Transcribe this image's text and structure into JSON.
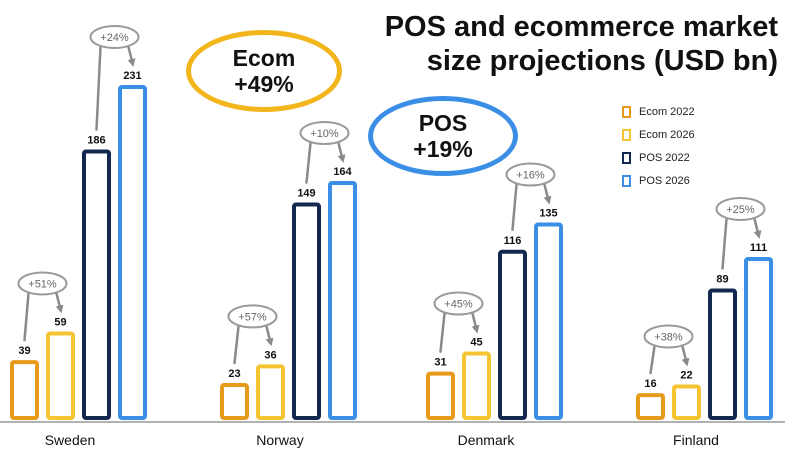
{
  "title_line1": "POS and ecommerce market",
  "title_line2": "size projections (USD bn)",
  "callouts": {
    "ecom": {
      "label": "Ecom",
      "change": "+49%",
      "color": "#f2b61c"
    },
    "pos": {
      "label": "POS",
      "change": "+19%",
      "color": "#3a8ee6"
    }
  },
  "legend": [
    {
      "label": "Ecom 2022",
      "color": "#e89a1c"
    },
    {
      "label": "Ecom 2026",
      "color": "#f5c531"
    },
    {
      "label": "POS 2022",
      "color": "#13284f"
    },
    {
      "label": "POS 2026",
      "color": "#3a8ee6"
    }
  ],
  "chart_data": {
    "type": "bar",
    "title": "POS and ecommerce market size projections (USD bn)",
    "xlabel": "",
    "ylabel": "",
    "ylim": [
      0,
      240
    ],
    "categories": [
      "Sweden",
      "Norway",
      "Denmark",
      "Finland"
    ],
    "series": [
      {
        "name": "Ecom 2022",
        "color": "#e89a1c",
        "values": [
          39,
          23,
          31,
          16
        ]
      },
      {
        "name": "Ecom 2026",
        "color": "#f5c531",
        "values": [
          59,
          36,
          45,
          22
        ]
      },
      {
        "name": "POS 2022",
        "color": "#13284f",
        "values": [
          186,
          149,
          116,
          89
        ]
      },
      {
        "name": "POS 2026",
        "color": "#3a8ee6",
        "values": [
          231,
          164,
          135,
          111
        ]
      }
    ],
    "growth": [
      {
        "category": "Sweden",
        "ecom": "+51%",
        "pos": "+24%"
      },
      {
        "category": "Norway",
        "ecom": "+57%",
        "pos": "+10%"
      },
      {
        "category": "Denmark",
        "ecom": "+45%",
        "pos": "+16%"
      },
      {
        "category": "Finland",
        "ecom": "+38%",
        "pos": "+25%"
      }
    ]
  }
}
